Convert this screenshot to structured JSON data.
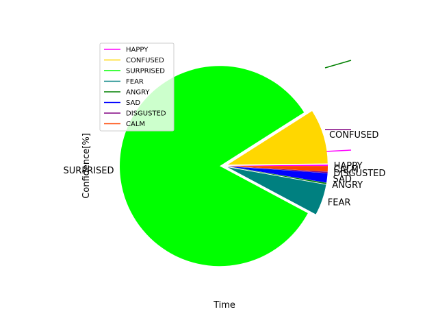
{
  "chart_data": {
    "type": "pie",
    "title": "",
    "xlabel": "Time",
    "ylabel": "Confidence[%]",
    "legend_placement": "upper-left",
    "grid": false,
    "slices": [
      {
        "label": "HAPPY",
        "value": 0.2,
        "color": "#ff00ff",
        "explode": true
      },
      {
        "label": "CONFUSED",
        "value": 8.8,
        "color": "#ffd700",
        "explode": true
      },
      {
        "label": "SURPRISED",
        "value": 83.2,
        "color": "#00ff00",
        "explode": true
      },
      {
        "label": "FEAR",
        "value": 5.0,
        "color": "#008080",
        "explode": true
      },
      {
        "label": "ANGRY",
        "value": 0.2,
        "color": "#008000",
        "explode": true
      },
      {
        "label": "SAD",
        "value": 1.5,
        "color": "#0000ff",
        "explode": true
      },
      {
        "label": "DISGUSTED",
        "value": 0.2,
        "color": "#800080",
        "explode": true
      },
      {
        "label": "CALM",
        "value": 0.9,
        "color": "#ff4500",
        "explode": true
      }
    ],
    "legend": [
      {
        "label": "HAPPY",
        "color": "#ff00ff"
      },
      {
        "label": "CONFUSED",
        "color": "#ffd700"
      },
      {
        "label": "SURPRISED",
        "color": "#00ff00"
      },
      {
        "label": "FEAR",
        "color": "#008080"
      },
      {
        "label": "ANGRY",
        "color": "#008000"
      },
      {
        "label": "SAD",
        "color": "#0000ff"
      },
      {
        "label": "DISGUSTED",
        "color": "#800080"
      },
      {
        "label": "CALM",
        "color": "#ff4500"
      }
    ]
  }
}
